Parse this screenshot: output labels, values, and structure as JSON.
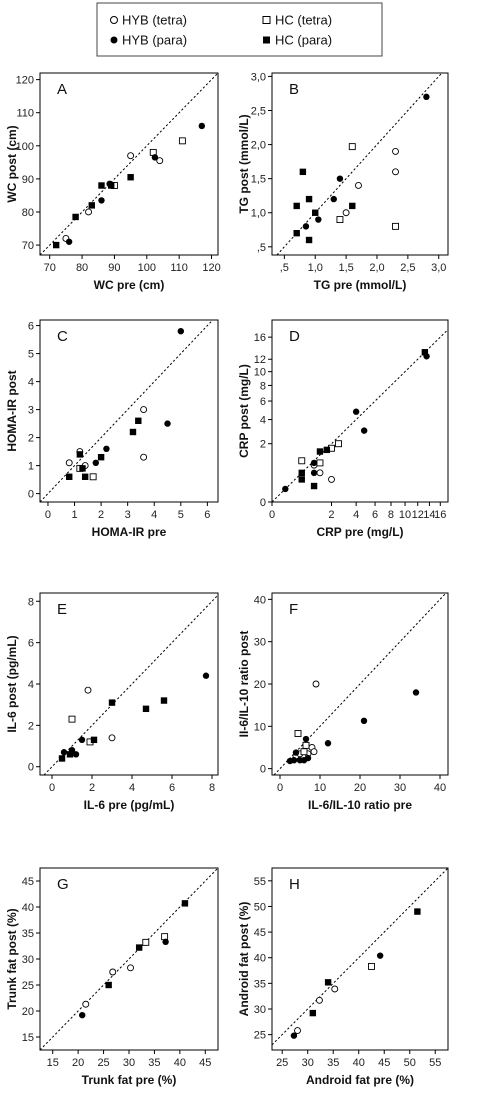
{
  "legend": {
    "items": [
      {
        "label": "HYB (tetra)",
        "marker": "open-circle"
      },
      {
        "label": "HC (tetra)",
        "marker": "open-square"
      },
      {
        "label": "HYB (para)",
        "marker": "filled-circle"
      },
      {
        "label": "HC (para)",
        "marker": "filled-square"
      }
    ]
  },
  "chart_data": [
    {
      "panel": "A",
      "type": "scatter",
      "xlabel": "WC pre (cm)",
      "ylabel": "WC post (cm)",
      "xlim": [
        67,
        122
      ],
      "ylim": [
        67,
        122
      ],
      "xticks": [
        70,
        80,
        90,
        100,
        110,
        120
      ],
      "yticks": [
        70,
        80,
        90,
        100,
        110,
        120
      ],
      "xtick_labels": [
        "70",
        "80",
        "90",
        "100",
        "110",
        "120"
      ],
      "ytick_labels": [
        "70",
        "80",
        "90",
        "100",
        "110",
        "120"
      ],
      "identity_line": true,
      "series": [
        {
          "name": "HYB (tetra)",
          "marker": "open-circle",
          "points": [
            [
              75,
              72
            ],
            [
              82,
              80
            ],
            [
              95,
              97
            ],
            [
              104,
              95.5
            ]
          ]
        },
        {
          "name": "HC (tetra)",
          "marker": "open-square",
          "points": [
            [
              90,
              88
            ],
            [
              102,
              98
            ],
            [
              111,
              101.5
            ]
          ]
        },
        {
          "name": "HYB (para)",
          "marker": "filled-circle",
          "points": [
            [
              76,
              71
            ],
            [
              86,
              83.5
            ],
            [
              88.5,
              88.5
            ],
            [
              102.5,
              96.5
            ],
            [
              117,
              106
            ]
          ]
        },
        {
          "name": "HC (para)",
          "marker": "filled-square",
          "points": [
            [
              72,
              70
            ],
            [
              78,
              78.5
            ],
            [
              83,
              82
            ],
            [
              86,
              88
            ],
            [
              89,
              88
            ],
            [
              95,
              90.5
            ]
          ]
        }
      ]
    },
    {
      "panel": "B",
      "type": "scatter",
      "xlabel": "TG pre (mmol/L)",
      "ylabel": "TG post (mmol/L)",
      "xlim": [
        0.3,
        3.15
      ],
      "ylim": [
        0.38,
        3.05
      ],
      "xticks": [
        0.5,
        1.0,
        1.5,
        2.0,
        2.5,
        3.0
      ],
      "yticks": [
        0.5,
        1.0,
        1.5,
        2.0,
        2.5,
        3.0
      ],
      "xtick_labels": [
        ",5",
        "1,0",
        "1,5",
        "2,0",
        "2,5",
        "3,0"
      ],
      "ytick_labels": [
        ",5",
        "1,0",
        "1,5",
        "2,0",
        "2,5",
        "3,0"
      ],
      "identity_line": true,
      "series": [
        {
          "name": "HYB (tetra)",
          "marker": "open-circle",
          "points": [
            [
              1.5,
              1.0
            ],
            [
              1.7,
              1.4
            ],
            [
              2.3,
              1.9
            ],
            [
              2.3,
              1.6
            ]
          ]
        },
        {
          "name": "HC (tetra)",
          "marker": "open-square",
          "points": [
            [
              1.4,
              0.9
            ],
            [
              1.6,
              1.97
            ],
            [
              2.3,
              0.8
            ]
          ]
        },
        {
          "name": "HYB (para)",
          "marker": "filled-circle",
          "points": [
            [
              0.85,
              0.8
            ],
            [
              1.05,
              0.9
            ],
            [
              1.3,
              1.2
            ],
            [
              1.4,
              1.5
            ],
            [
              2.8,
              2.7
            ]
          ]
        },
        {
          "name": "HC (para)",
          "marker": "filled-square",
          "points": [
            [
              0.7,
              0.7
            ],
            [
              0.7,
              1.1
            ],
            [
              0.8,
              1.6
            ],
            [
              0.9,
              0.6
            ],
            [
              0.9,
              1.2
            ],
            [
              1.0,
              1.0
            ],
            [
              1.6,
              1.1
            ]
          ]
        }
      ]
    },
    {
      "panel": "C",
      "type": "scatter",
      "xlabel": "HOMA-IR pre",
      "ylabel": "HOMA-IR post",
      "xlim": [
        -0.3,
        6.4
      ],
      "ylim": [
        -0.3,
        6.2
      ],
      "xticks": [
        0,
        1,
        2,
        3,
        4,
        5,
        6
      ],
      "yticks": [
        0,
        1,
        2,
        3,
        4,
        5,
        6
      ],
      "xtick_labels": [
        "0",
        "1",
        "2",
        "3",
        "4",
        "5",
        "6"
      ],
      "ytick_labels": [
        "0",
        "1",
        "2",
        "3",
        "4",
        "5",
        "6"
      ],
      "identity_line": true,
      "series": [
        {
          "name": "HYB (tetra)",
          "marker": "open-circle",
          "points": [
            [
              0.8,
              1.1
            ],
            [
              1.2,
              1.5
            ],
            [
              1.4,
              1.0
            ],
            [
              3.6,
              3.0
            ],
            [
              3.6,
              1.3
            ]
          ]
        },
        {
          "name": "HC (tetra)",
          "marker": "open-square",
          "points": [
            [
              1.2,
              0.9
            ],
            [
              1.7,
              0.6
            ]
          ]
        },
        {
          "name": "HYB (para)",
          "marker": "filled-circle",
          "points": [
            [
              1.8,
              1.1
            ],
            [
              2.2,
              1.6
            ],
            [
              4.5,
              2.5
            ],
            [
              5.0,
              5.8
            ]
          ]
        },
        {
          "name": "HC (para)",
          "marker": "filled-square",
          "points": [
            [
              0.8,
              0.6
            ],
            [
              1.2,
              1.4
            ],
            [
              1.3,
              0.9
            ],
            [
              1.4,
              0.6
            ],
            [
              2.0,
              1.3
            ],
            [
              3.2,
              2.2
            ],
            [
              3.4,
              2.6
            ]
          ]
        }
      ]
    },
    {
      "panel": "D",
      "type": "scatter",
      "xlabel": "CRP pre (mg/L)",
      "ylabel": "CRP post (mg/L)",
      "axis_scale": "square-root",
      "xlim": [
        -0.3,
        17.5
      ],
      "ylim": [
        -0.3,
        19.5
      ],
      "xticks": [
        0,
        2,
        4,
        6,
        8,
        10,
        12,
        14,
        16
      ],
      "yticks": [
        0,
        2,
        4,
        6,
        8,
        10,
        12,
        16
      ],
      "xtick_labels": [
        "0",
        "2",
        "4",
        "6",
        "8",
        "10",
        "12",
        "14",
        "16"
      ],
      "ytick_labels": [
        "0",
        "2",
        "4",
        "6",
        "8",
        "10",
        "12",
        "16"
      ],
      "identity_line": true,
      "series": [
        {
          "name": "HYB (tetra)",
          "marker": "open-circle",
          "points": [
            [
              1.0,
              0.8
            ],
            [
              1.3,
              0.5
            ],
            [
              2.0,
              0.3
            ]
          ]
        },
        {
          "name": "HC (tetra)",
          "marker": "open-square",
          "points": [
            [
              0.5,
              1.0
            ],
            [
              1.3,
              0.9
            ],
            [
              2.0,
              1.7
            ],
            [
              2.5,
              2.0
            ]
          ]
        },
        {
          "name": "HYB (para)",
          "marker": "filled-circle",
          "points": [
            [
              0.1,
              0.1
            ],
            [
              1.0,
              0.5
            ],
            [
              1.0,
              0.9
            ],
            [
              4.0,
              4.8
            ],
            [
              4.8,
              3.0
            ],
            [
              13.5,
              12.5
            ]
          ]
        },
        {
          "name": "HC (para)",
          "marker": "filled-square",
          "points": [
            [
              0.5,
              0.3
            ],
            [
              0.5,
              0.5
            ],
            [
              1.0,
              0.15
            ],
            [
              1.3,
              1.5
            ],
            [
              1.7,
              1.6
            ],
            [
              13.2,
              13.2
            ]
          ]
        }
      ]
    },
    {
      "panel": "E",
      "type": "scatter",
      "xlabel": "IL-6 pre (pg/mL)",
      "ylabel": "IL-6 post (pg/mL)",
      "xlim": [
        -0.6,
        8.3
      ],
      "ylim": [
        -0.4,
        8.4
      ],
      "xticks": [
        0,
        2,
        4,
        6,
        8
      ],
      "yticks": [
        0,
        2,
        4,
        6,
        8
      ],
      "xtick_labels": [
        "0",
        "2",
        "4",
        "6",
        "8"
      ],
      "ytick_labels": [
        "0",
        "2",
        "4",
        "6",
        "8"
      ],
      "identity_line": true,
      "series": [
        {
          "name": "HYB (tetra)",
          "marker": "open-circle",
          "points": [
            [
              1.8,
              3.7
            ],
            [
              3.0,
              1.4
            ]
          ]
        },
        {
          "name": "HC (tetra)",
          "marker": "open-square",
          "points": [
            [
              1.0,
              2.3
            ],
            [
              1.9,
              1.2
            ]
          ]
        },
        {
          "name": "HYB (para)",
          "marker": "filled-circle",
          "points": [
            [
              0.6,
              0.7
            ],
            [
              1.0,
              0.8
            ],
            [
              1.2,
              0.6
            ],
            [
              1.5,
              1.3
            ],
            [
              7.7,
              4.4
            ]
          ]
        },
        {
          "name": "HC (para)",
          "marker": "filled-square",
          "points": [
            [
              0.5,
              0.4
            ],
            [
              0.9,
              0.6
            ],
            [
              2.1,
              1.3
            ],
            [
              3.0,
              3.1
            ],
            [
              4.7,
              2.8
            ],
            [
              5.6,
              3.2
            ]
          ]
        }
      ]
    },
    {
      "panel": "F",
      "type": "scatter",
      "xlabel": "IL-6/IL-10 ratio pre",
      "ylabel": "II-6/IL-10 ratio post",
      "xlim": [
        -2,
        42
      ],
      "ylim": [
        -1.5,
        41.5
      ],
      "xticks": [
        0,
        10,
        20,
        30,
        40
      ],
      "yticks": [
        0,
        10,
        20,
        30,
        40
      ],
      "xtick_labels": [
        "0",
        "10",
        "20",
        "30",
        "40"
      ],
      "ytick_labels": [
        "0",
        "10",
        "20",
        "30",
        "40"
      ],
      "identity_line": true,
      "series": [
        {
          "name": "HYB (tetra)",
          "marker": "open-circle",
          "points": [
            [
              4.0,
              3.0
            ],
            [
              5.0,
              3.5
            ],
            [
              7.0,
              3.5
            ],
            [
              8.0,
              5.0
            ],
            [
              8.5,
              4.0
            ],
            [
              9.0,
              20.0
            ]
          ]
        },
        {
          "name": "HC (tetra)",
          "marker": "open-square",
          "points": [
            [
              4.5,
              8.3
            ],
            [
              6.0,
              4.0
            ],
            [
              6.5,
              5.5
            ]
          ]
        },
        {
          "name": "HYB (para)",
          "marker": "filled-circle",
          "points": [
            [
              2.5,
              1.8
            ],
            [
              3.5,
              2.0
            ],
            [
              4.0,
              3.8
            ],
            [
              5.0,
              2.0
            ],
            [
              6.0,
              2.0
            ],
            [
              6.5,
              7.0
            ],
            [
              7.0,
              2.5
            ],
            [
              12.0,
              6.0
            ],
            [
              21.0,
              11.3
            ],
            [
              34.0,
              18.0
            ]
          ]
        },
        {
          "name": "HC (para)",
          "marker": "filled-square",
          "points": []
        }
      ]
    },
    {
      "panel": "G",
      "type": "scatter",
      "xlabel": "Trunk fat pre (%)",
      "ylabel": "Trunk fat post (%)",
      "xlim": [
        12.5,
        47.5
      ],
      "ylim": [
        12.5,
        47.5
      ],
      "xticks": [
        15,
        20,
        25,
        30,
        35,
        40,
        45
      ],
      "yticks": [
        15,
        20,
        25,
        30,
        35,
        40,
        45
      ],
      "xtick_labels": [
        "15",
        "20",
        "25",
        "30",
        "35",
        "40",
        "45"
      ],
      "ytick_labels": [
        "15",
        "20",
        "25",
        "30",
        "35",
        "40",
        "45"
      ],
      "identity_line": true,
      "series": [
        {
          "name": "HYB (tetra)",
          "marker": "open-circle",
          "points": [
            [
              21.5,
              21.3
            ],
            [
              26.8,
              27.5
            ],
            [
              30.3,
              28.3
            ]
          ]
        },
        {
          "name": "HC (tetra)",
          "marker": "open-square",
          "points": [
            [
              33.3,
              33.2
            ],
            [
              37.0,
              34.3
            ]
          ]
        },
        {
          "name": "HYB (para)",
          "marker": "filled-circle",
          "points": [
            [
              20.8,
              19.2
            ],
            [
              37.2,
              33.3
            ]
          ]
        },
        {
          "name": "HC (para)",
          "marker": "filled-square",
          "points": [
            [
              26.0,
              25.0
            ],
            [
              32.0,
              32.2
            ],
            [
              41.0,
              40.7
            ]
          ]
        }
      ]
    },
    {
      "panel": "H",
      "type": "scatter",
      "xlabel": "Android fat pre (%)",
      "ylabel": "Android fat post (%)",
      "xlim": [
        23,
        57.5
      ],
      "ylim": [
        22,
        57.5
      ],
      "xticks": [
        25,
        30,
        35,
        40,
        45,
        50,
        55
      ],
      "yticks": [
        25,
        30,
        35,
        40,
        45,
        50,
        55
      ],
      "xtick_labels": [
        "25",
        "30",
        "35",
        "40",
        "45",
        "50",
        "55"
      ],
      "ytick_labels": [
        "25",
        "30",
        "35",
        "40",
        "45",
        "50",
        "55"
      ],
      "identity_line": true,
      "series": [
        {
          "name": "HYB (tetra)",
          "marker": "open-circle",
          "points": [
            [
              28.0,
              25.8
            ],
            [
              32.3,
              31.7
            ],
            [
              35.3,
              33.9
            ]
          ]
        },
        {
          "name": "HC (tetra)",
          "marker": "open-square",
          "points": [
            [
              42.5,
              38.3
            ]
          ]
        },
        {
          "name": "HYB (para)",
          "marker": "filled-circle",
          "points": [
            [
              27.3,
              24.8
            ],
            [
              44.2,
              40.4
            ]
          ]
        },
        {
          "name": "HC (para)",
          "marker": "filled-square",
          "points": [
            [
              31.0,
              29.2
            ],
            [
              34.0,
              35.2
            ],
            [
              51.5,
              49.0
            ]
          ]
        }
      ]
    }
  ]
}
